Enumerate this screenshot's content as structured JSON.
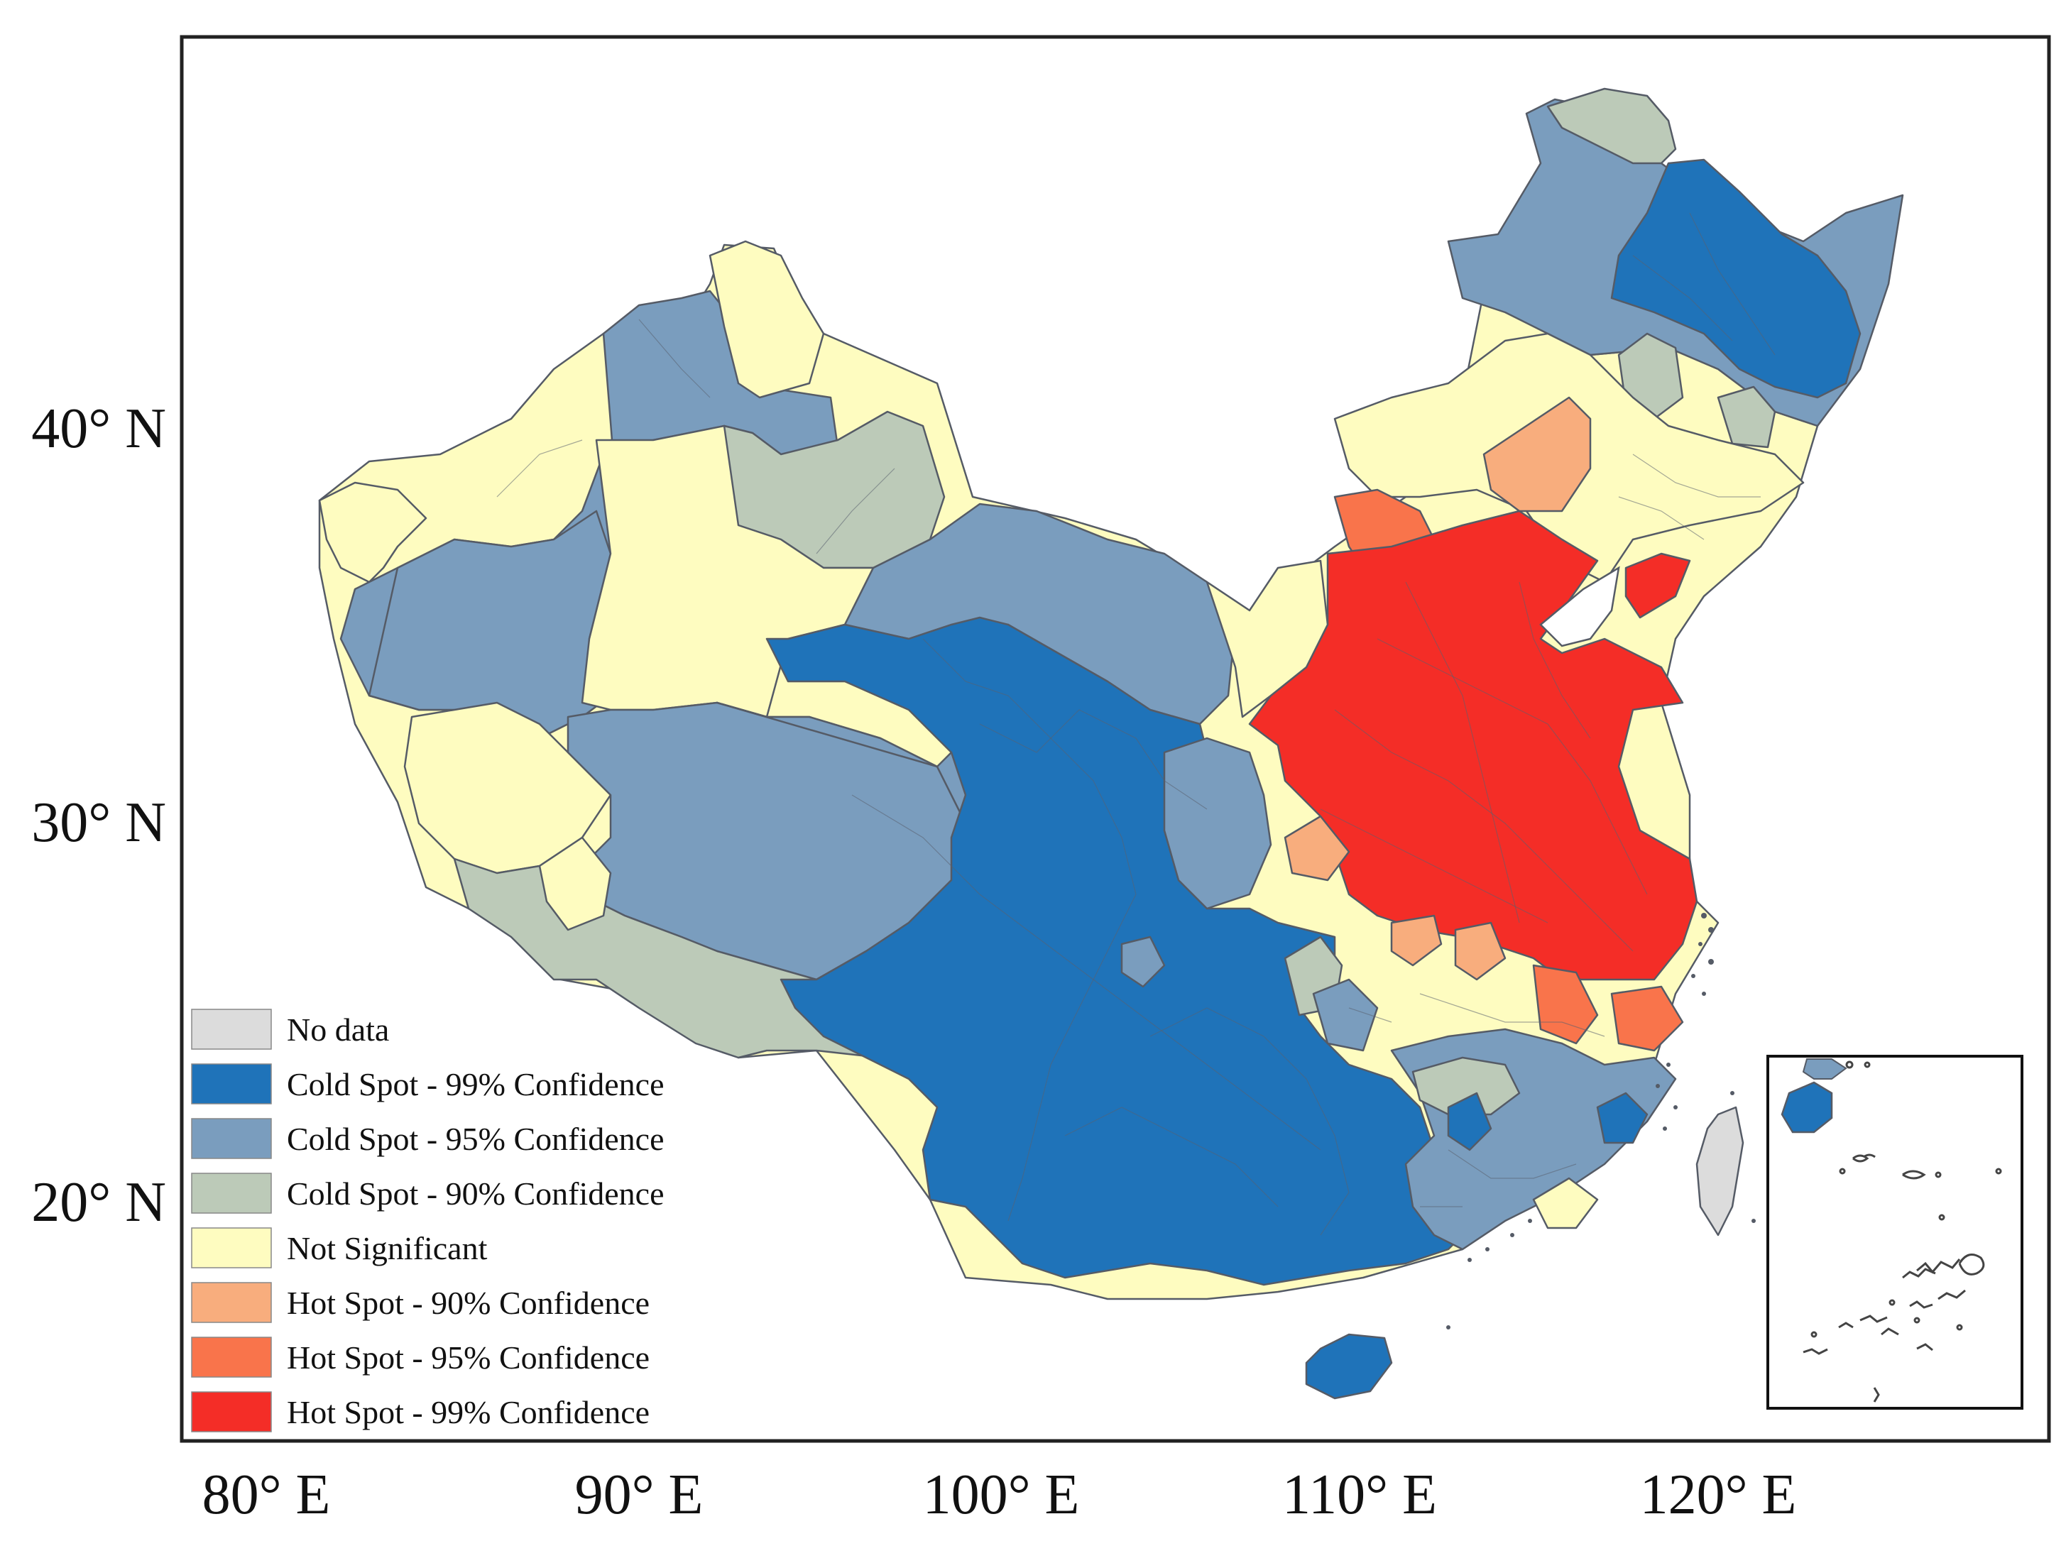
{
  "map": {
    "x_ticks": [
      {
        "label": "80° E"
      },
      {
        "label": "90° E"
      },
      {
        "label": "100° E"
      },
      {
        "label": "110° E"
      },
      {
        "label": "120° E"
      }
    ],
    "y_ticks": [
      {
        "label": "40° N"
      },
      {
        "label": "30° N"
      },
      {
        "label": "20° N"
      }
    ],
    "legend": [
      {
        "key": "nodata",
        "label": "No data",
        "color": "#dcdcdc"
      },
      {
        "key": "cold99",
        "label": "Cold Spot - 99% Confidence",
        "color": "#1f73b9"
      },
      {
        "key": "cold95",
        "label": "Cold Spot - 95% Confidence",
        "color": "#7a9dbe"
      },
      {
        "key": "cold90",
        "label": "Cold Spot - 90% Confidence",
        "color": "#bccab8"
      },
      {
        "key": "ns",
        "label": "Not Significant",
        "color": "#fefcc0"
      },
      {
        "key": "hot90",
        "label": "Hot Spot - 90% Confidence",
        "color": "#f8ad7d"
      },
      {
        "key": "hot95",
        "label": "Hot Spot - 95% Confidence",
        "color": "#f9744b"
      },
      {
        "key": "hot99",
        "label": "Hot Spot - 99% Confidence",
        "color": "#f42d27"
      }
    ],
    "inset": {
      "description_icon": "south-china-sea-islands-inset"
    }
  }
}
